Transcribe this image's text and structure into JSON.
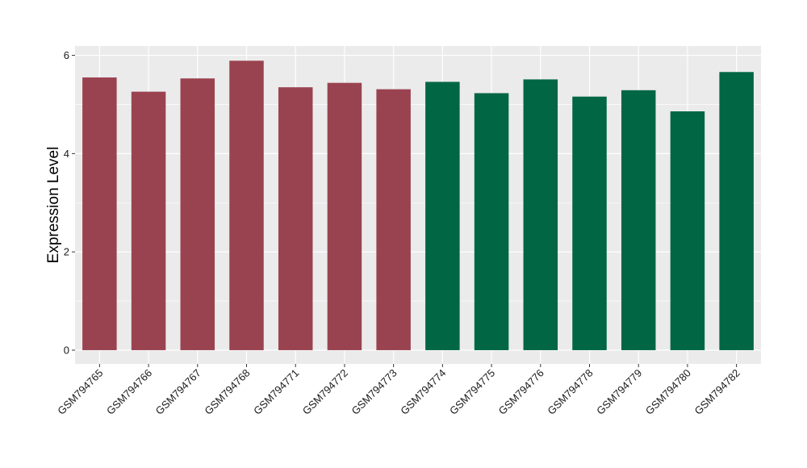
{
  "chart_data": {
    "type": "bar",
    "title": "",
    "xlabel": "",
    "ylabel": "Expression Level",
    "categories": [
      "GSM794765",
      "GSM794766",
      "GSM794767",
      "GSM794768",
      "GSM794771",
      "GSM794772",
      "GSM794773",
      "GSM794774",
      "GSM794775",
      "GSM794776",
      "GSM794778",
      "GSM794779",
      "GSM794780",
      "GSM794782"
    ],
    "values": [
      5.55,
      5.26,
      5.53,
      5.89,
      5.35,
      5.44,
      5.31,
      5.46,
      5.23,
      5.51,
      5.16,
      5.29,
      4.86,
      5.66
    ],
    "bar_colors": [
      "#9a4350",
      "#9a4350",
      "#9a4350",
      "#9a4350",
      "#9a4350",
      "#9a4350",
      "#9a4350",
      "#006644",
      "#006644",
      "#006644",
      "#006644",
      "#006644",
      "#006644",
      "#006644"
    ],
    "ylim": [
      -0.28,
      6.19
    ],
    "yticks": [
      0,
      2,
      4,
      6
    ],
    "grid": true,
    "legend": "none",
    "panel_background": "#ebebeb",
    "grid_color": "#ffffff"
  }
}
